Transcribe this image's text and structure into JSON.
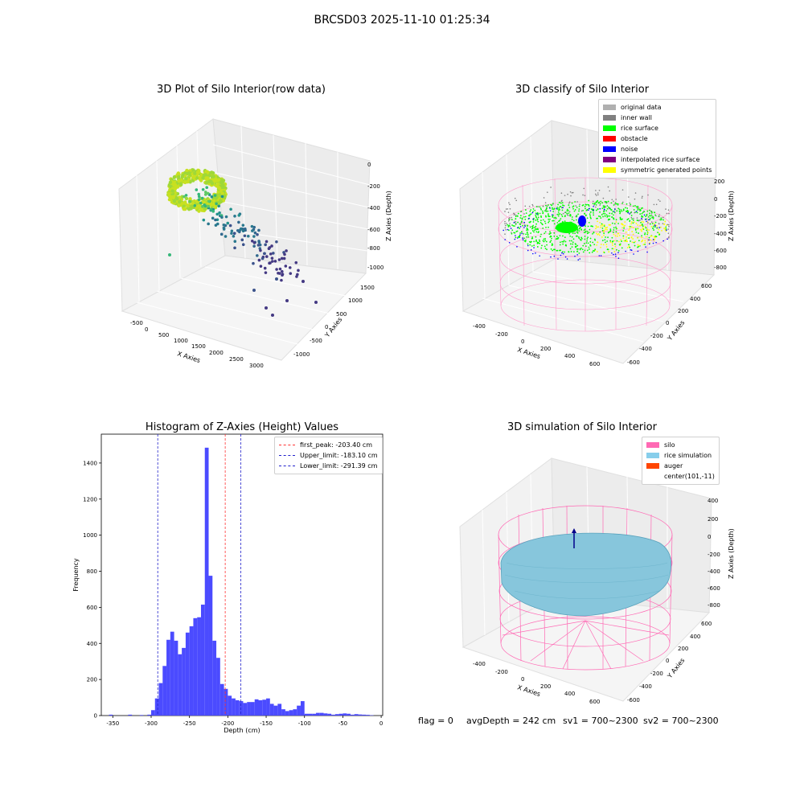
{
  "figure_title": "BRCSD03 2025-11-10 01:25:34",
  "colors": {
    "hist_bar": "#4b4bff",
    "first_peak": "#ff3333",
    "limits": "#2222cc",
    "silo_mesh": "#ff69b4",
    "rice_fill": "#7ec4d8"
  },
  "plots": {
    "raw": {
      "title": "3D Plot of Silo Interior(row data)",
      "xlabel": "X Axies",
      "ylabel": "Y Axies",
      "zlabel": "Z Axies (Depth)",
      "xticks": [
        "-500",
        "0",
        "500",
        "1000",
        "1500",
        "2000",
        "2500",
        "3000"
      ],
      "yticks": [
        "1500",
        "1000",
        "500",
        "0",
        "-500",
        "-1000"
      ],
      "zticks": [
        "0",
        "-200",
        "-400",
        "-600",
        "-800",
        "-1000"
      ]
    },
    "classify": {
      "title": "3D classify of Silo Interior",
      "xlabel": "X Axies",
      "ylabel": "Y Axies",
      "zlabel": "Z Axies (Depth)",
      "xticks": [
        "-400",
        "-200",
        "0",
        "200",
        "400",
        "600"
      ],
      "yticks": [
        "600",
        "400",
        "200",
        "0",
        "-200",
        "-400",
        "-600"
      ],
      "zticks": [
        "200",
        "0",
        "-200",
        "-400",
        "-600",
        "-800"
      ],
      "legend": [
        {
          "label": "original data",
          "color": "#b0b0b0"
        },
        {
          "label": "inner wall",
          "color": "#808080"
        },
        {
          "label": "rice surface",
          "color": "#00ff00"
        },
        {
          "label": "obstacle",
          "color": "#ff0000"
        },
        {
          "label": "noise",
          "color": "#0000ff"
        },
        {
          "label": "interpolated rice surface",
          "color": "#800080"
        },
        {
          "label": "symmetric generated points",
          "color": "#ffff00"
        }
      ]
    },
    "simulation": {
      "title": "3D simulation of Silo Interior",
      "xlabel": "X Axies",
      "ylabel": "Y Axies",
      "zlabel": "Z Axies (Depth)",
      "xticks": [
        "-400",
        "-200",
        "0",
        "200",
        "400",
        "600"
      ],
      "yticks": [
        "600",
        "400",
        "200",
        "0",
        "-200",
        "-400",
        "-600"
      ],
      "zticks": [
        "400",
        "200",
        "0",
        "-200",
        "-400",
        "-600",
        "-800"
      ],
      "legend": [
        {
          "label": "silo",
          "color": "#ff69b4"
        },
        {
          "label": "rice simulation",
          "color": "#87ceeb"
        },
        {
          "label": "auger",
          "color": "#ff4500"
        },
        {
          "label": "center(101,-11)",
          "color": ""
        }
      ]
    }
  },
  "status": {
    "flag": "flag = 0",
    "avg_depth": "avgDepth = 242 cm",
    "sv1": "sv1 = 700~2300",
    "sv2": "sv2 = 700~2300"
  },
  "chart_data": {
    "type": "bar",
    "title": "Histogram of Z-Axies (Height) Values",
    "xlabel": "Depth (cm)",
    "ylabel": "Frequency",
    "xlim": [
      -365,
      2
    ],
    "ylim": [
      0,
      1560
    ],
    "xticks": [
      -350,
      -300,
      -250,
      -200,
      -150,
      -100,
      -50,
      0
    ],
    "yticks": [
      0,
      200,
      400,
      600,
      800,
      1000,
      1200,
      1400
    ],
    "bin_width": 5,
    "bin_starts": [
      -355,
      -330,
      -315,
      -305,
      -300,
      -295,
      -290,
      -285,
      -280,
      -275,
      -270,
      -265,
      -260,
      -255,
      -250,
      -245,
      -240,
      -235,
      -230,
      -225,
      -220,
      -215,
      -210,
      -205,
      -200,
      -195,
      -190,
      -185,
      -180,
      -175,
      -170,
      -165,
      -160,
      -155,
      -150,
      -145,
      -140,
      -135,
      -130,
      -125,
      -120,
      -115,
      -110,
      -105,
      -100,
      -95,
      -90,
      -85,
      -80,
      -75,
      -70,
      -65,
      -60,
      -55,
      -50,
      -45,
      -40,
      -35,
      -30,
      -25,
      -20,
      -15
    ],
    "values": [
      5,
      5,
      3,
      5,
      30,
      95,
      180,
      275,
      420,
      465,
      415,
      340,
      375,
      460,
      495,
      540,
      545,
      615,
      1485,
      775,
      415,
      320,
      175,
      148,
      110,
      95,
      85,
      80,
      70,
      75,
      75,
      90,
      85,
      88,
      95,
      65,
      55,
      65,
      35,
      25,
      30,
      35,
      55,
      80,
      10,
      10,
      10,
      15,
      15,
      12,
      10,
      5,
      8,
      10,
      12,
      10,
      5,
      8,
      6,
      5,
      4,
      2
    ],
    "lines": [
      {
        "name": "first_peak: -203.40 cm",
        "x": -203.4,
        "color": "#ff3333"
      },
      {
        "name": "Upper_limit: -183.10 cm",
        "x": -183.1,
        "color": "#2222cc"
      },
      {
        "name": "Lower_limit: -291.39 cm",
        "x": -291.39,
        "color": "#2222cc"
      }
    ]
  }
}
